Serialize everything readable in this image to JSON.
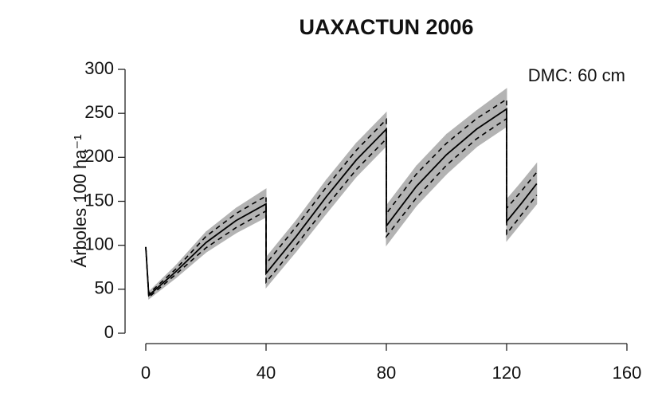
{
  "chart_data": {
    "type": "line",
    "title": "UAXACTUN 2006",
    "annotation": "DMC: 60 cm",
    "y_label": "Árboles 100 ha⁻¹",
    "x": [
      0,
      1,
      10,
      20,
      30,
      40,
      40,
      50,
      60,
      70,
      80,
      80,
      90,
      100,
      110,
      120,
      120,
      125,
      130
    ],
    "series": [
      {
        "color": "#000000",
        "dashed": false,
        "values": [
          98,
          43,
          70,
          103,
          128,
          147,
          68,
          110,
          155,
          197,
          232,
          122,
          167,
          203,
          232,
          255,
          127,
          148,
          170
        ]
      },
      {
        "color": "#000000",
        "dashed": true,
        "values": [
          98,
          45,
          73,
          110,
          136,
          156,
          79,
          121,
          166,
          208,
          243,
          136,
          181,
          216,
          244,
          266,
          142,
          162,
          183
        ]
      },
      {
        "color": "#000000",
        "dashed": true,
        "values": [
          98,
          41,
          67,
          97,
          120,
          139,
          58,
          100,
          144,
          186,
          221,
          110,
          154,
          191,
          221,
          244,
          113,
          135,
          157
        ]
      }
    ],
    "band": {
      "color": "#b3b3b3",
      "upper": [
        98,
        47,
        77,
        115,
        142,
        164,
        86,
        128,
        174,
        216,
        251,
        145,
        190,
        226,
        253,
        278,
        152,
        172,
        193
      ],
      "lower": [
        98,
        39,
        63,
        92,
        114,
        132,
        52,
        93,
        136,
        178,
        213,
        100,
        145,
        181,
        212,
        235,
        105,
        126,
        147
      ]
    },
    "xlim": [
      0,
      160
    ],
    "xticks": [
      0,
      40,
      80,
      120,
      160
    ],
    "ylim": [
      0,
      300
    ],
    "yticks": [
      0,
      50,
      100,
      150,
      200,
      250,
      300
    ]
  }
}
